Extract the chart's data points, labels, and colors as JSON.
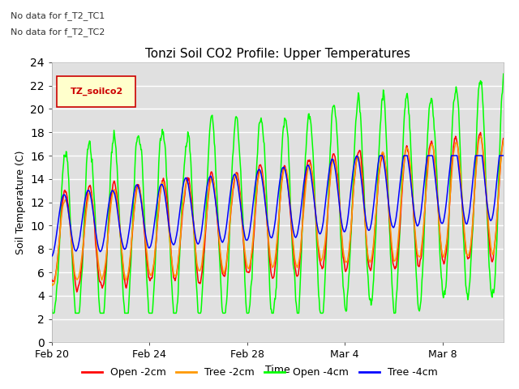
{
  "title": "Tonzi Soil CO2 Profile: Upper Temperatures",
  "xlabel": "Time",
  "ylabel": "Soil Temperature (C)",
  "ylim": [
    0,
    24
  ],
  "x_tick_labels": [
    "Feb 20",
    "Feb 24",
    "Feb 28",
    "Mar 4",
    "Mar 8"
  ],
  "background_color": "#ffffff",
  "plot_bg_color": "#e0e0e0",
  "grid_color": "#ffffff",
  "annotations": [
    "No data for f_T2_TC1",
    "No data for f_T2_TC2"
  ],
  "legend_box_label": "TZ_soilco2",
  "legend_box_color": "#ffffcc",
  "legend_box_edge": "#cc0000",
  "series": [
    {
      "label": "Open -2cm",
      "color": "#ff0000"
    },
    {
      "label": "Tree -2cm",
      "color": "#ff9900"
    },
    {
      "label": "Open -4cm",
      "color": "#00ff00"
    },
    {
      "label": "Tree -4cm",
      "color": "#0000ff"
    }
  ],
  "title_fontsize": 11,
  "axis_fontsize": 9,
  "tick_fontsize": 9,
  "annot_fontsize": 8
}
